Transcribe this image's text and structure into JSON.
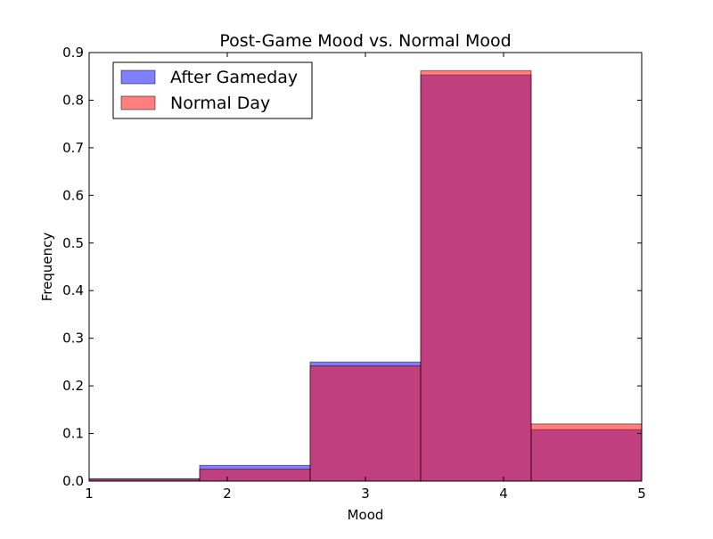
{
  "chart_data": {
    "type": "bar",
    "subtype": "overlaid-histogram",
    "title": "Post-Game Mood vs. Normal Mood",
    "xlabel": "Mood",
    "ylabel": "Frequency",
    "xlim": [
      1,
      5
    ],
    "ylim": [
      0,
      0.9
    ],
    "xticks": [
      "1",
      "2",
      "3",
      "4",
      "5"
    ],
    "yticks": [
      "0.0",
      "0.1",
      "0.2",
      "0.3",
      "0.4",
      "0.5",
      "0.6",
      "0.7",
      "0.8",
      "0.9"
    ],
    "bin_edges": [
      1.0,
      1.8,
      2.6,
      3.4,
      4.2,
      5.0
    ],
    "series": [
      {
        "name": "After Gameday",
        "color": "#0000ff",
        "values": [
          0.005,
          0.033,
          0.25,
          0.853,
          0.108
        ]
      },
      {
        "name": "Normal Day",
        "color": "#ff0000",
        "values": [
          0.004,
          0.025,
          0.242,
          0.862,
          0.12
        ]
      }
    ],
    "fill_alpha": 0.5,
    "legend": {
      "position": "top-left"
    },
    "grid": false
  }
}
